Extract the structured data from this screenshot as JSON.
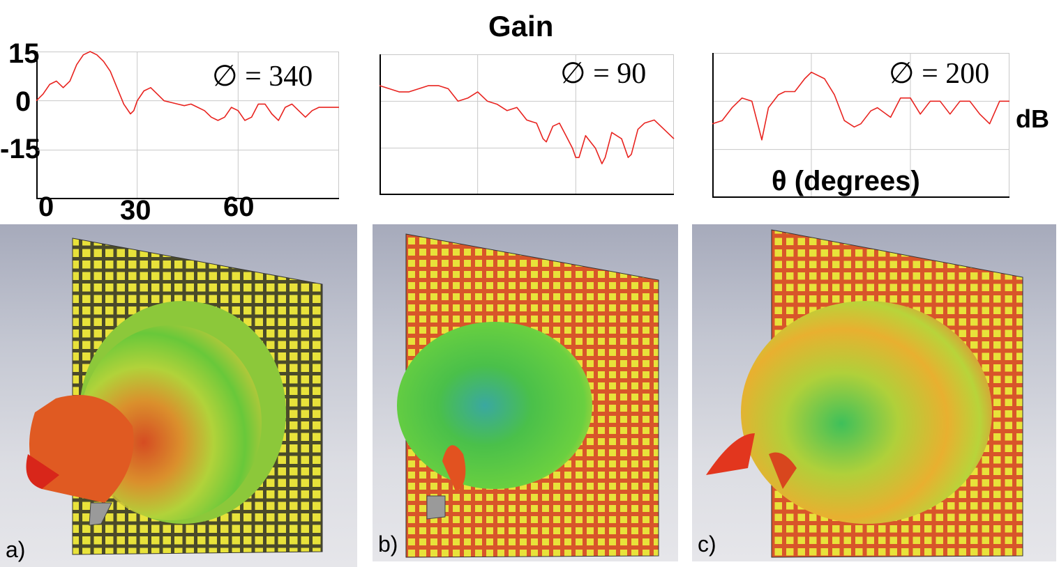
{
  "title": "Gain",
  "unit_label": "dB",
  "theta_label": "θ (degrees)",
  "colors": {
    "curve": "#e8231f",
    "grid": "#c8c8c8",
    "axis": "#000000"
  },
  "chart_data": [
    {
      "type": "line",
      "phi_label": "∅ = 340",
      "xlabel": "θ (degrees)",
      "ylabel": "dB",
      "xlim": [
        0,
        90
      ],
      "ylim": [
        -30,
        15
      ],
      "xticks": [
        0,
        30,
        60
      ],
      "yticks": [
        15,
        0,
        -15
      ],
      "x": [
        0,
        2,
        4,
        6,
        8,
        10,
        12,
        14,
        16,
        18,
        20,
        22,
        24,
        26,
        28,
        29,
        30,
        32,
        34,
        36,
        38,
        40,
        42,
        44,
        46,
        48,
        50,
        52,
        54,
        56,
        58,
        60,
        62,
        64,
        66,
        68,
        70,
        72,
        74,
        76,
        78,
        80,
        82,
        84,
        86,
        88,
        90
      ],
      "y": [
        0,
        2,
        5,
        6,
        4,
        6,
        11,
        14,
        15,
        14,
        12,
        9,
        4,
        -1,
        -4,
        -3,
        0,
        3,
        4,
        2,
        0,
        -0.5,
        -1,
        -1.5,
        -1,
        -2,
        -3,
        -5,
        -6,
        -5,
        -2,
        -3,
        -6,
        -5,
        -1,
        -1,
        -4,
        -6,
        -2,
        -1,
        -3,
        -5,
        -3,
        -2,
        -2,
        -2,
        -2
      ]
    },
    {
      "type": "line",
      "phi_label": "∅ = 90",
      "xlabel": "θ (degrees)",
      "ylabel": "dB",
      "xlim": [
        0,
        90
      ],
      "ylim": [
        -30,
        15
      ],
      "xticks": [
        0,
        30,
        60
      ],
      "yticks": [
        15,
        0,
        -15
      ],
      "x": [
        0,
        3,
        6,
        9,
        12,
        15,
        18,
        21,
        24,
        27,
        30,
        33,
        36,
        39,
        42,
        45,
        48,
        50,
        51,
        53,
        55,
        57,
        59,
        60,
        61,
        63,
        66,
        68,
        69,
        71,
        74,
        76,
        77,
        79,
        81,
        84,
        87,
        90
      ],
      "y": [
        5,
        4,
        3,
        3,
        4,
        5,
        5,
        4,
        0,
        1,
        3,
        0,
        -1,
        -3,
        -2,
        -6,
        -7,
        -12,
        -13,
        -8,
        -7,
        -11,
        -15,
        -18,
        -18,
        -11,
        -15,
        -20,
        -18,
        -10,
        -12,
        -18,
        -17,
        -9,
        -7,
        -6,
        -9,
        -12
      ]
    },
    {
      "type": "line",
      "phi_label": "∅ = 200",
      "xlabel": "θ (degrees)",
      "ylabel": "dB",
      "xlim": [
        0,
        90
      ],
      "ylim": [
        -30,
        15
      ],
      "xticks": [
        0,
        30,
        60
      ],
      "yticks": [
        15,
        0,
        -15
      ],
      "x": [
        0,
        3,
        6,
        9,
        12,
        14,
        15,
        17,
        20,
        22,
        25,
        28,
        30,
        34,
        37,
        40,
        43,
        45,
        48,
        50,
        54,
        57,
        60,
        63,
        66,
        69,
        72,
        75,
        78,
        81,
        84,
        87,
        90
      ],
      "y": [
        -7,
        -6,
        -2,
        1,
        0,
        -8,
        -12,
        -2,
        2,
        3,
        3,
        7,
        9,
        7,
        2,
        -6,
        -8,
        -7,
        -3,
        -2,
        -5,
        1,
        1,
        -4,
        0,
        0,
        -4,
        0,
        0,
        -4,
        -7,
        0,
        0
      ]
    }
  ],
  "panels": [
    {
      "label": "a)"
    },
    {
      "label": "b)"
    },
    {
      "label": "c)"
    }
  ]
}
